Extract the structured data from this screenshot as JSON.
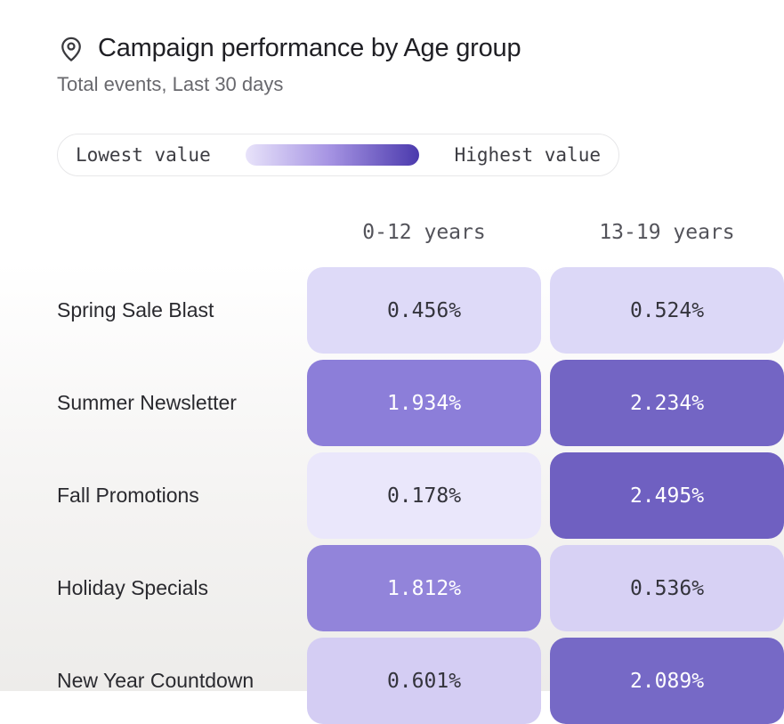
{
  "header": {
    "icon": "location-pin-icon",
    "title": "Campaign performance by Age group",
    "subtitle": "Total events, Last 30 days"
  },
  "legend": {
    "low_label": "Lowest value",
    "high_label": "Highest value",
    "gradient_start": "#e8e3fa",
    "gradient_mid": "#a694e3",
    "gradient_end": "#4b3aad"
  },
  "chart_data": {
    "type": "heatmap",
    "title": "Campaign performance by Age group",
    "subtitle": "Total events, Last 30 days",
    "units": "%",
    "legend_position": "top",
    "columns": [
      "0-12 years",
      "13-19 years"
    ],
    "rows": [
      "Spring Sale Blast",
      "Summer Newsletter",
      "Fall Promotions",
      "Holiday Specials",
      "New Year Countdown"
    ],
    "values": [
      [
        0.456,
        0.524
      ],
      [
        1.934,
        2.234
      ],
      [
        0.178,
        2.495
      ],
      [
        1.812,
        0.536
      ],
      [
        0.601,
        2.089
      ]
    ],
    "cell_labels": [
      [
        "0.456%",
        "0.524%"
      ],
      [
        "1.934%",
        "2.234%"
      ],
      [
        "0.178%",
        "2.495%"
      ],
      [
        "1.812%",
        "0.536%"
      ],
      [
        "0.601%",
        "2.089%"
      ]
    ],
    "cell_colors": [
      [
        "#dedaf8",
        "#dcd8f7"
      ],
      [
        "#8c7ed9",
        "#7365c4"
      ],
      [
        "#eae7fb",
        "#6f60c1"
      ],
      [
        "#9284da",
        "#d7d1f4"
      ],
      [
        "#d4cdf3",
        "#7669c6"
      ]
    ],
    "cell_text_colors": [
      [
        "#34343c",
        "#34343c"
      ],
      [
        "#ffffff",
        "#ffffff"
      ],
      [
        "#34343c",
        "#ffffff"
      ],
      [
        "#ffffff",
        "#34343c"
      ],
      [
        "#34343c",
        "#ffffff"
      ]
    ]
  }
}
